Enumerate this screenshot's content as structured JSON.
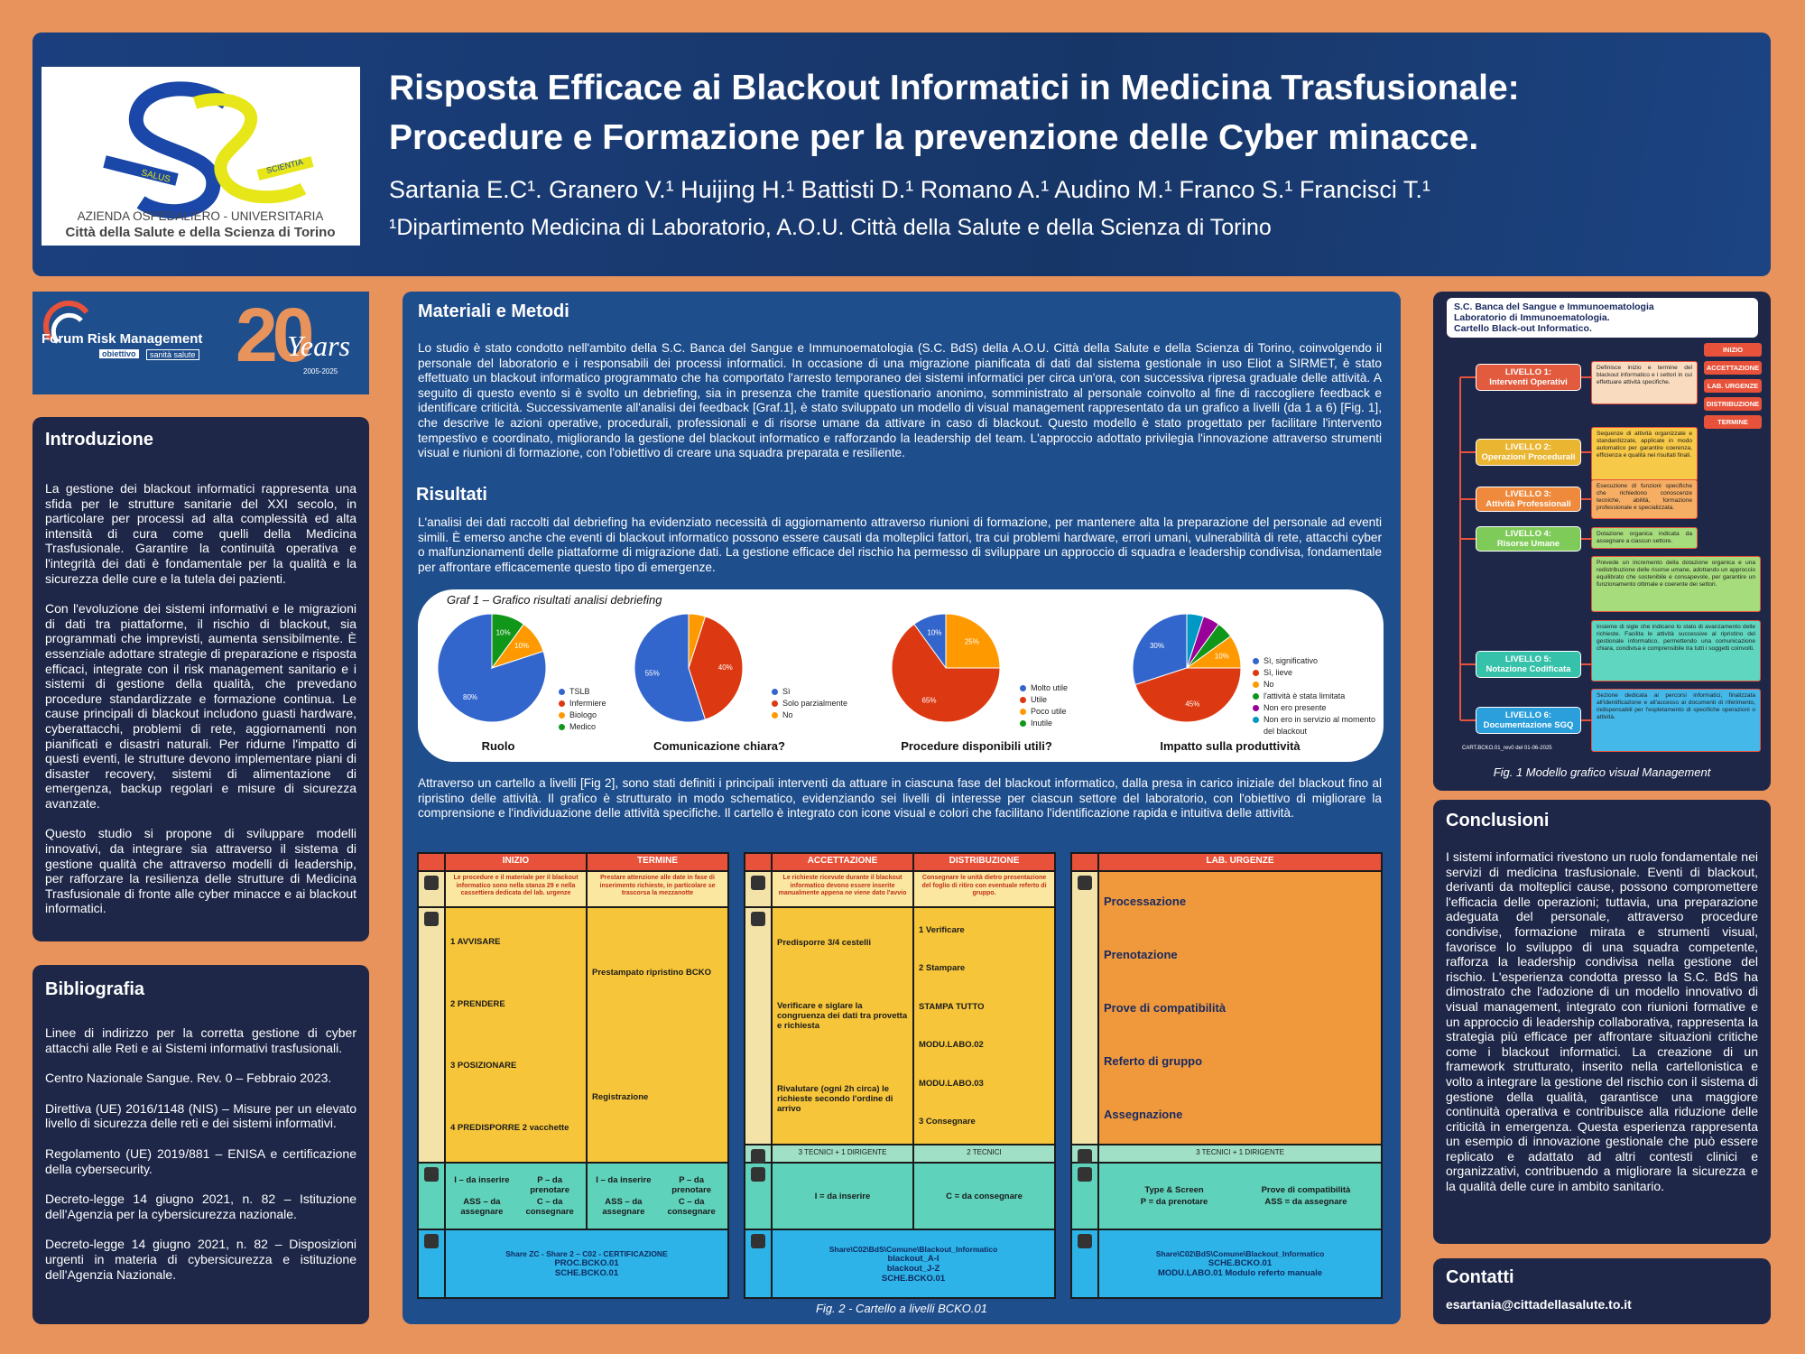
{
  "header": {
    "title_line1": "Risposta Efficace ai Blackout Informatici in Medicina Trasfusionale:",
    "title_line2": "Procedure e Formazione per la prevenzione delle Cyber minacce.",
    "authors": "Sartania E.C¹. Granero V.¹ Huijing H.¹ Battisti D.¹ Romano A.¹ Audino M.¹ Franco S.¹ Francisci T.¹",
    "affiliation": "¹Dipartimento Medicina di Laboratorio, A.O.U. Città della Salute e della Scienza di Torino",
    "logo": {
      "salus": "SALUS",
      "scientia": "SCIENTIA",
      "line1": "AZIENDA OSPEDALIERO - UNIVERSITARIA",
      "line2": "Città della Salute e della Scienza di Torino"
    }
  },
  "forum": {
    "name": "Forum Risk Management",
    "tag1": "obiettivo",
    "tag2": "sanità salute",
    "years_number": "20",
    "years_word": "Years",
    "years_range": "2005-2025"
  },
  "introduzione": {
    "heading": "Introduzione",
    "paragraphs": [
      "La gestione dei blackout informatici rappresenta una sfida per le strutture sanitarie del XXI secolo, in particolare per processi ad alta complessità ed alta intensità di cura come quelli della Medicina Trasfusionale. Garantire la continuità operativa e l'integrità dei dati è fondamentale per la qualità e la sicurezza delle cure e la tutela dei pazienti.",
      "Con l'evoluzione dei sistemi informativi e le migrazioni di dati tra piattaforme, il rischio di blackout, sia programmati che imprevisti, aumenta sensibilmente. È essenziale adottare strategie di preparazione e risposta efficaci, integrate con il risk management sanitario e i sistemi di gestione della qualità, che prevedano procedure standardizzate e formazione continua. Le cause principali di blackout includono guasti hardware, cyberattacchi, problemi di rete, aggiornamenti non pianificati e disastri naturali. Per ridurne l'impatto di questi eventi, le strutture devono implementare piani di disaster recovery, sistemi di alimentazione di emergenza, backup regolari e misure di sicurezza avanzate.",
      "Questo studio si propone di sviluppare modelli innovativi, da integrare sia attraverso il sistema di gestione qualità che attraverso modelli di leadership, per rafforzare la resilienza delle strutture di Medicina Trasfusionale di fronte alle cyber minacce e ai blackout informatici."
    ]
  },
  "bibliografia": {
    "heading": "Bibliografia",
    "items": [
      "Linee di indirizzo per la corretta gestione di cyber attacchi alle Reti e ai Sistemi informativi trasfusionali.",
      "Centro Nazionale Sangue. Rev. 0 – Febbraio 2023.",
      "Direttiva (UE) 2016/1148 (NIS) – Misure per un elevato livello di sicurezza delle reti e dei sistemi informativi.",
      "Regolamento (UE) 2019/881 – ENISA e certificazione della cybersecurity.",
      "Decreto-legge 14 giugno 2021, n. 82 – Istituzione dell'Agenzia per la cybersicurezza nazionale.",
      "Decreto-legge 14 giugno 2021, n. 82 – Disposizioni urgenti in materia di cybersicurezza e istituzione dell'Agenzia Nazionale."
    ]
  },
  "materiali": {
    "heading": "Materiali e Metodi",
    "text": "Lo studio è stato condotto nell'ambito della S.C. Banca del Sangue e Immunoematologia (S.C. BdS) della A.O.U. Città della Salute e della Scienza di Torino, coinvolgendo il personale del laboratorio e i responsabili dei processi informatici. In occasione di una migrazione pianificata di dati dal sistema gestionale in uso Eliot a SIRMET, è stato effettuato un blackout informatico programmato che ha comportato l'arresto temporaneo dei sistemi informatici per circa un'ora, con successiva ripresa graduale delle attività. A seguito di questo evento si è svolto un debriefing, sia in presenza che tramite questionario anonimo, somministrato al personale coinvolto al fine di raccogliere feedback e identificare criticità. Successivamente all'analisi dei feedback [Graf.1], è stato sviluppato un modello di visual management rappresentato da un grafico a livelli (da 1 a 6) [Fig. 1], che descrive le azioni operative, procedurali, professionali e di risorse umane da attivare in caso di blackout. Questo modello è stato progettato per facilitare l'intervento tempestivo e coordinato, migliorando la gestione del blackout informatico e rafforzando la leadership del team. L'approccio adottato privilegia l'innovazione attraverso strumenti visual e riunioni di formazione, con l'obiettivo di creare una squadra preparata e resiliente."
  },
  "risultati": {
    "heading": "Risultati",
    "text": "L'analisi dei dati raccolti dal debriefing ha evidenziato necessità di aggiornamento attraverso riunioni di formazione, per mantenere alta la preparazione del personale ad eventi simili. È emerso anche che eventi di blackout informatico possono essere causati da molteplici fattori, tra cui problemi hardware, errori umani, vulnerabilità di rete, attacchi cyber o malfunzionamenti delle piattaforme di migrazione dati. La gestione efficace del rischio ha permesso di sviluppare un approccio di squadra e leadership condivisa, fondamentale per affrontare efficacemente questo tipo di emergenze.",
    "graf_title": "Graf 1 – Grafico risultati analisi debriefing",
    "text2": "Attraverso un cartello a livelli [Fig 2], sono stati definiti i principali interventi da attuare in ciascuna fase del blackout informatico, dalla presa in carico iniziale del blackout fino al ripristino delle attività. Il grafico è strutturato in modo schematico, evidenziando sei livelli di interesse per ciascun settore del laboratorio, con l'obiettivo di migliorare la comprensione e l'individuazione delle attività specifiche. Il cartello è integrato con icone visual e colori che facilitano l'identificazione rapida e intuitiva delle attività."
  },
  "chart_data": [
    {
      "type": "pie",
      "title": "Ruolo",
      "categories": [
        "TSLB",
        "Infermiere",
        "Biologo",
        "Medico"
      ],
      "colors": [
        "#3366cc",
        "#dc3912",
        "#ff9900",
        "#109618"
      ],
      "values": [
        80,
        0,
        10,
        10
      ],
      "value_labels": [
        "80%",
        null,
        "10%",
        "10%"
      ]
    },
    {
      "type": "pie",
      "title": "Comunicazione chiara?",
      "categories": [
        "Sì",
        "Solo parzialmente",
        "No"
      ],
      "colors": [
        "#3366cc",
        "#dc3912",
        "#ff9900"
      ],
      "values": [
        55,
        40,
        5
      ],
      "value_labels": [
        "55%",
        "40%",
        null
      ]
    },
    {
      "type": "pie",
      "title": "Procedure disponibili utili?",
      "categories": [
        "Molto utile",
        "Utile",
        "Poco utile",
        "Inutile"
      ],
      "colors": [
        "#3366cc",
        "#dc3912",
        "#ff9900",
        "#109618"
      ],
      "values": [
        10,
        65,
        25,
        0
      ],
      "value_labels": [
        "10%",
        "65%",
        "25%",
        null
      ]
    },
    {
      "type": "pie",
      "title": "Impatto sulla produttività",
      "categories": [
        "Sì, significativo",
        "Sì, lieve",
        "No",
        "l'attività è stata limitata",
        "Non ero presente",
        "Non ero in servizio al momento del blackout"
      ],
      "colors": [
        "#3366cc",
        "#dc3912",
        "#ff9900",
        "#109618",
        "#990099",
        "#0099c6"
      ],
      "values": [
        30,
        45,
        10,
        5,
        5,
        5
      ],
      "value_labels": [
        "30%",
        "45%",
        "10%",
        null,
        null,
        null
      ]
    }
  ],
  "fig2": {
    "caption": "Fig. 2 - Cartello a livelli BCKO.01",
    "panels": [
      {
        "columns": [
          {
            "header": "INIZIO",
            "warning": "Le procedure e il materiale per il blackout informatico sono nella stanza 29 e nella cassettiera dedicata del lab. urgenze",
            "items": [
              "1 AVVISARE",
              "2 PRENDERE",
              "3 POSIZIONARE",
              "4 PREDISPORRE 2 vacchette"
            ],
            "codes": [
              "I – da inserire",
              "P – da prenotare",
              "ASS – da assegnare",
              "C – da consegnare"
            ]
          },
          {
            "header": "TERMINE",
            "warning": "Prestare attenzione alle date in fase di inserimento richieste, in particolare se trascorsa la mezzanotte",
            "items": [
              "Prestampato ripristino BCKO",
              "Registrazione"
            ],
            "codes": [
              "I – da inserire",
              "P – da prenotare",
              "ASS – da assegnare",
              "C – da consegnare"
            ]
          }
        ],
        "share": [
          "Share ZC - Share 2 – C02 - CERTIFICAZIONE",
          "PROC.BCKO.01",
          "SCHE.BCKO.01"
        ]
      },
      {
        "columns": [
          {
            "header": "ACCETTAZIONE",
            "warning": "Le richieste ricevute durante il blackout informatico devono essere inserite manualmente appena ne viene dato l'avvio",
            "items": [
              "Predisporre 3/4 cestelli",
              "Verificare e siglare la congruenza dei dati tra provetta e richiesta",
              "Rivalutare (ogni 2h circa) le richieste secondo l'ordine di arrivo"
            ],
            "staff": "3 TECNICI + 1 DIRIGENTE",
            "codes": [
              "I = da inserire"
            ]
          },
          {
            "header": "DISTRIBUZIONE",
            "warning": "Consegnare le unità dietro presentazione del foglio di ritiro con eventuale referto di gruppo.",
            "items": [
              "1 Verificare",
              "2 Stampare",
              "STAMPA TUTTO",
              "MODU.LABO.02",
              "MODU.LABO.03",
              "3 Consegnare"
            ],
            "staff": "2 TECNICI",
            "codes": [
              "C = da consegnare"
            ]
          }
        ],
        "share": [
          "Share\\C02\\BdS\\Comune\\Blackout_Informatico",
          "blackout_A-I",
          "blackout_J-Z",
          "SCHE.BCKO.01"
        ]
      },
      {
        "columns": [
          {
            "header": "LAB. URGENZE",
            "items": [
              "Processazione",
              "Prenotazione",
              "Prove di compatibilità",
              "Referto di gruppo",
              "Assegnazione"
            ],
            "staff": "3 TECNICI + 1 DIRIGENTE",
            "codes": [
              "Type & Screen",
              "Prove di compatibilità",
              "P = da prenotare",
              "ASS = da assegnare"
            ]
          }
        ],
        "share": [
          "Share\\C02\\BdS\\Comune\\Blackout_Informatico",
          "SCHE.BCKO.01",
          "MODU.LABO.01 Modulo referto manuale"
        ]
      }
    ]
  },
  "fig1": {
    "header": [
      "S.C. Banca del Sangue e Immunoematologia",
      "Laboratorio di Immunoematologia.",
      "Cartello Black-out Informatico."
    ],
    "buttons": [
      "INIZIO",
      "ACCETTAZIONE",
      "LAB. URGENZE",
      "DISTRIBUZIONE",
      "TERMINE"
    ],
    "levels": [
      {
        "label": "LIVELLO 1:",
        "name": "Interventi Operativi",
        "description": "Definisce inizio e termine del blackout informatico e i settori in cui effettuare attività specifiche."
      },
      {
        "label": "LIVELLO 2:",
        "name": "Operazioni Procedurali",
        "description": "Sequenze di attività organizzate e standardizzate, applicate in modo automatico per garantire coerenza, efficienza e qualità nei risultati finali."
      },
      {
        "label": "LIVELLO 3:",
        "name": "Attività Professionali",
        "description": "Esecuzione di funzioni specifiche che richiedono conoscenze tecniche, abilità, formazione professionale e specializzata."
      },
      {
        "label": "LIVELLO 4:",
        "name": "Risorse Umane",
        "description": "Dotazione organica indicata da assegnare a ciascun settore."
      },
      {
        "label": "LIVELLO 5:",
        "name": "Notazione Codificata",
        "description": "Insieme di sigle che indicano lo stato di avanzamento delle richieste. Facilita le attività successive al ripristino del gestionale informatico, permettendo una comunicazione chiara, condivisa e comprensibile tra tutti i soggetti coinvolti."
      },
      {
        "label": "LIVELLO 6:",
        "name": "Documentazione SGQ",
        "description": "Sezione dedicata ai percorsi informatici, finalizzata all'identificazione e all'accesso ai documenti di riferimento, indispensabili per l'espletamento di specifiche operazioni o attività."
      }
    ],
    "extra": "Prevede un incremento della dotazione organica e una redistribuzione delle risorse umane, adottando un approccio equilibrato che sostenibile e consapevole, per garantire un funzionamento ottimale e coerente dei settori.",
    "footer": "CART.BCKO.01_rev0 del 01-06-2025",
    "caption": "Fig. 1 Modello grafico visual Management"
  },
  "conclusioni": {
    "heading": "Conclusioni",
    "text": "I sistemi informatici rivestono un ruolo fondamentale nei servizi di medicina trasfusionale. Eventi di blackout, derivanti da molteplici cause, possono compromettere l'efficacia delle operazioni; tuttavia, una preparazione adeguata del personale, attraverso procedure condivise, formazione mirata e strumenti visual, favorisce lo sviluppo di una squadra competente, rafforza la leadership condivisa nella gestione del rischio. L'esperienza condotta presso la S.C. BdS ha dimostrato che l'adozione di un modello innovativo di visual management, integrato con riunioni formative e un approccio di leadership collaborativa, rappresenta la strategia più efficace per affrontare situazioni critiche come i blackout informatici. La creazione di un framework strutturato, inserito nella cartellonistica e volto a integrare la gestione del rischio con il sistema di gestione della qualità, garantisce una maggiore continuità operativa e contribuisce alla riduzione delle criticità in emergenza. Questa esperienza rappresenta un esempio di innovazione gestionale che può essere replicato e adattato ad altri contesti clinici e organizzativi, contribuendo a migliorare la sicurezza e la qualità delle cure in ambito sanitario."
  },
  "contatti": {
    "heading": "Contatti",
    "email": "esartania@cittadellasalute.to.it"
  }
}
